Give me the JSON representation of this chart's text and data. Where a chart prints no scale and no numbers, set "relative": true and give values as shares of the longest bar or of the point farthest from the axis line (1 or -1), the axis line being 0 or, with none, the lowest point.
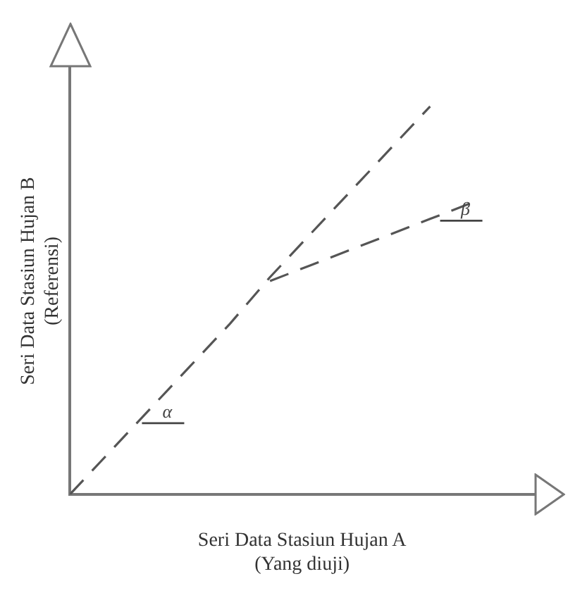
{
  "chart_data": {
    "type": "line",
    "relative": true,
    "xlabel": "Seri Data Stasiun Hujan A\n(Yang diuji)",
    "ylabel": "Seri Data Stasiun Hujan B\n(Referensi)",
    "line_style": "dashed",
    "marker": "none",
    "legend": false,
    "grid": false,
    "categories": [
      null,
      null,
      null,
      null,
      null,
      null,
      null,
      null,
      null,
      null,
      null
    ],
    "series": [
      {
        "color": "#555555",
        "values": [
          0,
          0.11,
          0.22,
          0.33,
          0.44,
          0.56,
          0.67,
          0.78,
          0.89,
          1,
          null
        ]
      },
      {
        "color": "#555555",
        "values": [
          null,
          null,
          null,
          null,
          null,
          0.55,
          0.59,
          0.63,
          0.67,
          0.71,
          0.75
        ]
      }
    ],
    "annotations": [
      "α",
      "β"
    ]
  }
}
